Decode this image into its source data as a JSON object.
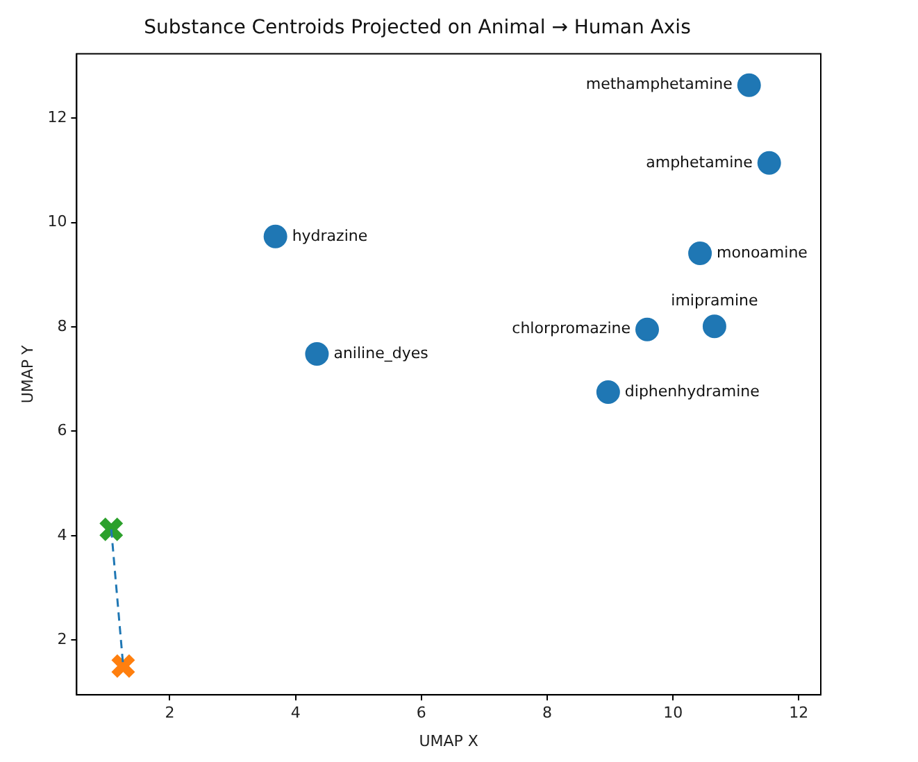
{
  "chart_data": {
    "type": "scatter",
    "title": "Substance Centroids Projected on Animal → Human Axis",
    "xlabel": "UMAP X",
    "ylabel": "UMAP Y",
    "xlim": [
      0.52,
      12.35
    ],
    "ylim": [
      0.95,
      13.23
    ],
    "xticks": [
      2,
      4,
      6,
      8,
      10,
      12
    ],
    "yticks": [
      2,
      4,
      6,
      8,
      10,
      12
    ],
    "grid": false,
    "legend": false,
    "series": [
      {
        "type": "scatter",
        "color": "#1f77b4",
        "marker": "circle",
        "x": [
          11.21,
          11.53,
          3.68,
          10.43,
          9.59,
          10.66,
          4.34,
          8.97
        ],
        "values": [
          12.63,
          11.14,
          9.73,
          9.41,
          7.95,
          8.01,
          7.48,
          6.75
        ]
      },
      {
        "type": "line",
        "color": "#1f77b4",
        "marker": "none",
        "line_style": "dashed",
        "x": [
          1.07,
          1.26
        ],
        "values": [
          4.12,
          1.5
        ]
      },
      {
        "type": "scatter",
        "color": "#2ca02c",
        "marker": "cross",
        "x": [
          1.07
        ],
        "values": [
          4.12
        ]
      },
      {
        "type": "scatter",
        "color": "#ff7f0e",
        "marker": "cross",
        "x": [
          1.26
        ],
        "values": [
          1.5
        ]
      }
    ],
    "annotations": [
      {
        "text": "methamphetamine",
        "x": 11.21,
        "y": 12.63
      },
      {
        "text": "amphetamine",
        "x": 11.53,
        "y": 11.14
      },
      {
        "text": "hydrazine",
        "x": 3.68,
        "y": 9.73
      },
      {
        "text": "monoamine",
        "x": 10.43,
        "y": 9.41
      },
      {
        "text": "chlorpromazine",
        "x": 9.59,
        "y": 7.95
      },
      {
        "text": "imipramine",
        "x": 10.66,
        "y": 8.01
      },
      {
        "text": "aniline_dyes",
        "x": 4.34,
        "y": 7.48
      },
      {
        "text": "diphenhydramine",
        "x": 8.97,
        "y": 6.75
      }
    ]
  }
}
